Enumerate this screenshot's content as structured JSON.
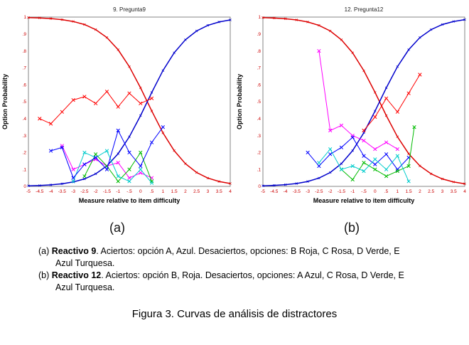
{
  "figure": {
    "sublabel_a": "(a)",
    "sublabel_b": "(b)",
    "captions": [
      {
        "prefix": "(a) ",
        "bold": "Reactivo 9",
        "text": ". Aciertos: opción A, Azul. Desaciertos, opciones: B Roja, C Rosa, D Verde, E Azul Turquesa."
      },
      {
        "prefix": "(b) ",
        "bold": "Reactivo 12",
        "text": ". Aciertos: opción B, Roja. Desaciertos, opciones: A Azul, C Rosa, D Verde, E Azul Turquesa."
      }
    ],
    "title": "Figura 3. Curvas de análisis de distractores"
  },
  "chart_data": [
    {
      "type": "line",
      "title": "9. Pregunta9",
      "xlabel": "Measure relative to item difficulty",
      "ylabel": "Option Probability",
      "xlim": [
        -5,
        4
      ],
      "ylim": [
        0,
        1
      ],
      "grid": false,
      "legend": "none",
      "tick_label_color": "#cc0000",
      "x_ticks": [
        -5,
        -4.5,
        -4,
        -3.5,
        -3,
        -2.5,
        -2,
        -1.5,
        -1,
        -0.5,
        0,
        0.5,
        1,
        1.5,
        2,
        2.5,
        3,
        3.5,
        4
      ],
      "x_tick_labels": [
        "-5",
        "-4.5",
        "-4",
        "-3.5",
        "-3",
        "-2.5",
        "-2",
        "-1.5",
        "-1",
        "-.5",
        "0",
        ".5",
        "1",
        "1.5",
        "2",
        "2.5",
        "3",
        "3.5",
        "4"
      ],
      "y_ticks": [
        0,
        0.1,
        0.2,
        0.3,
        0.4,
        0.5,
        0.6,
        0.7,
        0.8,
        0.9,
        1
      ],
      "y_tick_labels": [
        "0",
        ".1",
        ".2",
        ".3",
        ".4",
        ".5",
        ".6",
        ".7",
        ".8",
        ".9",
        "1"
      ],
      "series": [
        {
          "name": "model-descending-red",
          "style": "model",
          "color": "#dd0000",
          "x": [
            -5,
            -4.5,
            -4,
            -3.5,
            -3,
            -2.5,
            -2,
            -1.5,
            -1,
            -0.5,
            0,
            0.5,
            1,
            1.5,
            2,
            2.5,
            3,
            3.5,
            4
          ],
          "y": [
            0.997,
            0.995,
            0.991,
            0.985,
            0.974,
            0.956,
            0.926,
            0.879,
            0.807,
            0.707,
            0.582,
            0.445,
            0.316,
            0.211,
            0.134,
            0.082,
            0.049,
            0.029,
            0.017
          ]
        },
        {
          "name": "model-ascending-blue",
          "style": "model",
          "color": "#0000cc",
          "x": [
            -5,
            -4.5,
            -4,
            -3.5,
            -3,
            -2.5,
            -2,
            -1.5,
            -1,
            -0.5,
            0,
            0.5,
            1,
            1.5,
            2,
            2.5,
            3,
            3.5,
            4
          ],
          "y": [
            0.003,
            0.005,
            0.009,
            0.015,
            0.026,
            0.044,
            0.074,
            0.121,
            0.193,
            0.293,
            0.418,
            0.555,
            0.684,
            0.789,
            0.866,
            0.918,
            0.951,
            0.971,
            0.983
          ]
        },
        {
          "name": "option-b-roja",
          "style": "empirical",
          "color": "#ff0000",
          "x": [
            -4.5,
            -4,
            -3.5,
            -3,
            -2.5,
            -2,
            -1.5,
            -1,
            -0.5,
            0,
            0.5
          ],
          "y": [
            0.4,
            0.37,
            0.44,
            0.51,
            0.53,
            0.49,
            0.56,
            0.47,
            0.55,
            0.49,
            0.52
          ]
        },
        {
          "name": "option-c-rosa",
          "style": "empirical",
          "color": "#ff00ff",
          "x": [
            -3.5,
            -3,
            -2.5,
            -2,
            -1.5,
            -1,
            -0.5,
            0,
            0.5
          ],
          "y": [
            0.24,
            0.1,
            0.13,
            0.16,
            0.12,
            0.14,
            0.05,
            0.08,
            0.05
          ]
        },
        {
          "name": "option-d-verde",
          "style": "empirical",
          "color": "#00bb00",
          "x": [
            -2.5,
            -2,
            -1.5,
            -1,
            -0.5,
            0,
            0.5
          ],
          "y": [
            0.06,
            0.19,
            0.12,
            0.03,
            0.1,
            0.2,
            0.03
          ]
        },
        {
          "name": "option-e-turquesa",
          "style": "empirical",
          "color": "#00cccc",
          "x": [
            -3,
            -2.5,
            -2,
            -1.5,
            -1,
            -0.5,
            0,
            0.5
          ],
          "y": [
            0.03,
            0.2,
            0.17,
            0.21,
            0.06,
            0.03,
            0.1,
            0.02
          ]
        },
        {
          "name": "option-a-azul",
          "style": "empirical",
          "color": "#0000ff",
          "x": [
            -4,
            -3.5,
            -3,
            -2.5,
            -2,
            -1.5,
            -1,
            -0.5,
            0,
            0.5,
            1
          ],
          "y": [
            0.21,
            0.23,
            0.05,
            0.13,
            0.17,
            0.1,
            0.33,
            0.2,
            0.12,
            0.26,
            0.35
          ]
        }
      ]
    },
    {
      "type": "line",
      "title": "12. Pregunta12",
      "xlabel": "Measure relative to item difficulty",
      "ylabel": "Option Probability",
      "xlim": [
        -5,
        4
      ],
      "ylim": [
        0,
        1
      ],
      "grid": false,
      "legend": "none",
      "tick_label_color": "#cc0000",
      "x_ticks": [
        -5,
        -4.5,
        -4,
        -3.5,
        -3,
        -2.5,
        -2,
        -1.5,
        -1,
        -0.5,
        0,
        0.5,
        1,
        1.5,
        2,
        2.5,
        3,
        3.5,
        4
      ],
      "x_tick_labels": [
        "-5",
        "-4.5",
        "-4",
        "-3.5",
        "-3",
        "-2.5",
        "-2",
        "-1.5",
        "-1",
        "-.5",
        "0",
        ".5",
        "1",
        "1.5",
        "2",
        "2.5",
        "3",
        "3.5",
        "4"
      ],
      "y_ticks": [
        0,
        0.1,
        0.2,
        0.3,
        0.4,
        0.5,
        0.6,
        0.7,
        0.8,
        0.9,
        1
      ],
      "y_tick_labels": [
        "0",
        ".1",
        ".2",
        ".3",
        ".4",
        ".5",
        ".6",
        ".7",
        ".8",
        ".9",
        "1"
      ],
      "series": [
        {
          "name": "model-descending-red",
          "style": "model",
          "color": "#dd0000",
          "x": [
            -5,
            -4.5,
            -4,
            -3.5,
            -3,
            -2.5,
            -2,
            -1.5,
            -1,
            -0.5,
            0,
            0.5,
            1,
            1.5,
            2,
            2.5,
            3,
            3.5,
            4
          ],
          "y": [
            0.997,
            0.994,
            0.99,
            0.983,
            0.971,
            0.951,
            0.918,
            0.866,
            0.789,
            0.683,
            0.555,
            0.418,
            0.293,
            0.193,
            0.121,
            0.074,
            0.044,
            0.026,
            0.015
          ]
        },
        {
          "name": "model-ascending-blue",
          "style": "model",
          "color": "#0000cc",
          "x": [
            -5,
            -4.5,
            -4,
            -3.5,
            -3,
            -2.5,
            -2,
            -1.5,
            -1,
            -0.5,
            0,
            0.5,
            1,
            1.5,
            2,
            2.5,
            3,
            3.5,
            4
          ],
          "y": [
            0.003,
            0.006,
            0.01,
            0.017,
            0.029,
            0.049,
            0.082,
            0.134,
            0.211,
            0.317,
            0.445,
            0.582,
            0.707,
            0.807,
            0.879,
            0.926,
            0.956,
            0.974,
            0.985
          ]
        },
        {
          "name": "option-c-rosa",
          "style": "empirical",
          "color": "#ff00ff",
          "x": [
            -2.5,
            -2,
            -1.5,
            -1,
            -0.5,
            0,
            0.5,
            1
          ],
          "y": [
            0.8,
            0.33,
            0.36,
            0.3,
            0.27,
            0.22,
            0.26,
            0.22
          ]
        },
        {
          "name": "option-a-azul",
          "style": "empirical",
          "color": "#0000ff",
          "x": [
            -3,
            -2.5,
            -2,
            -1.5,
            -1,
            -0.5,
            0,
            0.5,
            1,
            1.5
          ],
          "y": [
            0.2,
            0.12,
            0.19,
            0.23,
            0.29,
            0.18,
            0.13,
            0.19,
            0.1,
            0.17
          ]
        },
        {
          "name": "option-b-roja",
          "style": "empirical",
          "color": "#ff0000",
          "x": [
            -0.5,
            0,
            0.5,
            1,
            1.5,
            2
          ],
          "y": [
            0.33,
            0.41,
            0.52,
            0.44,
            0.55,
            0.66
          ]
        },
        {
          "name": "option-d-verde",
          "style": "empirical",
          "color": "#00bb00",
          "x": [
            -1.5,
            -1,
            -0.5,
            0,
            0.5,
            1,
            1.5,
            1.75
          ],
          "y": [
            0.1,
            0.04,
            0.14,
            0.1,
            0.06,
            0.09,
            0.12,
            0.35
          ]
        },
        {
          "name": "option-e-turquesa",
          "style": "empirical",
          "color": "#00cccc",
          "x": [
            -2.5,
            -2,
            -1.5,
            -1,
            -0.5,
            0,
            0.5,
            1,
            1.5
          ],
          "y": [
            0.14,
            0.22,
            0.1,
            0.12,
            0.09,
            0.16,
            0.1,
            0.18,
            0.03
          ]
        }
      ]
    }
  ]
}
